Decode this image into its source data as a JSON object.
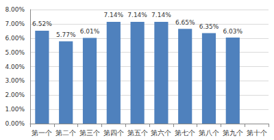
{
  "chart_data": {
    "type": "bar",
    "categories": [
      "第一个",
      "第二个",
      "第三个",
      "第四个",
      "第五个",
      "第六个",
      "第七个",
      "第八个",
      "第九个",
      "第十个"
    ],
    "values": [
      6.52,
      5.77,
      6.01,
      7.14,
      7.14,
      7.14,
      6.65,
      6.35,
      6.03,
      null
    ],
    "value_labels": [
      "6.52%",
      "5.77%",
      "6.01%",
      "7.14%",
      "7.14%",
      "7.14%",
      "6.65%",
      "6.35%",
      "6.03%",
      null
    ],
    "color": "#4f81bd",
    "ylim": [
      0,
      8
    ],
    "yticks": [
      {
        "value": 0,
        "label": "0.00%"
      },
      {
        "value": 1,
        "label": "1.00%"
      },
      {
        "value": 2,
        "label": "2.00%"
      },
      {
        "value": 3,
        "label": "3.00%"
      },
      {
        "value": 4,
        "label": "4.00%"
      },
      {
        "value": 5,
        "label": "5.00%"
      },
      {
        "value": 6,
        "label": "6.00%"
      },
      {
        "value": 7,
        "label": "7.00%"
      },
      {
        "value": 8,
        "label": "8.00%"
      }
    ],
    "grid": true,
    "data_labels": true
  }
}
